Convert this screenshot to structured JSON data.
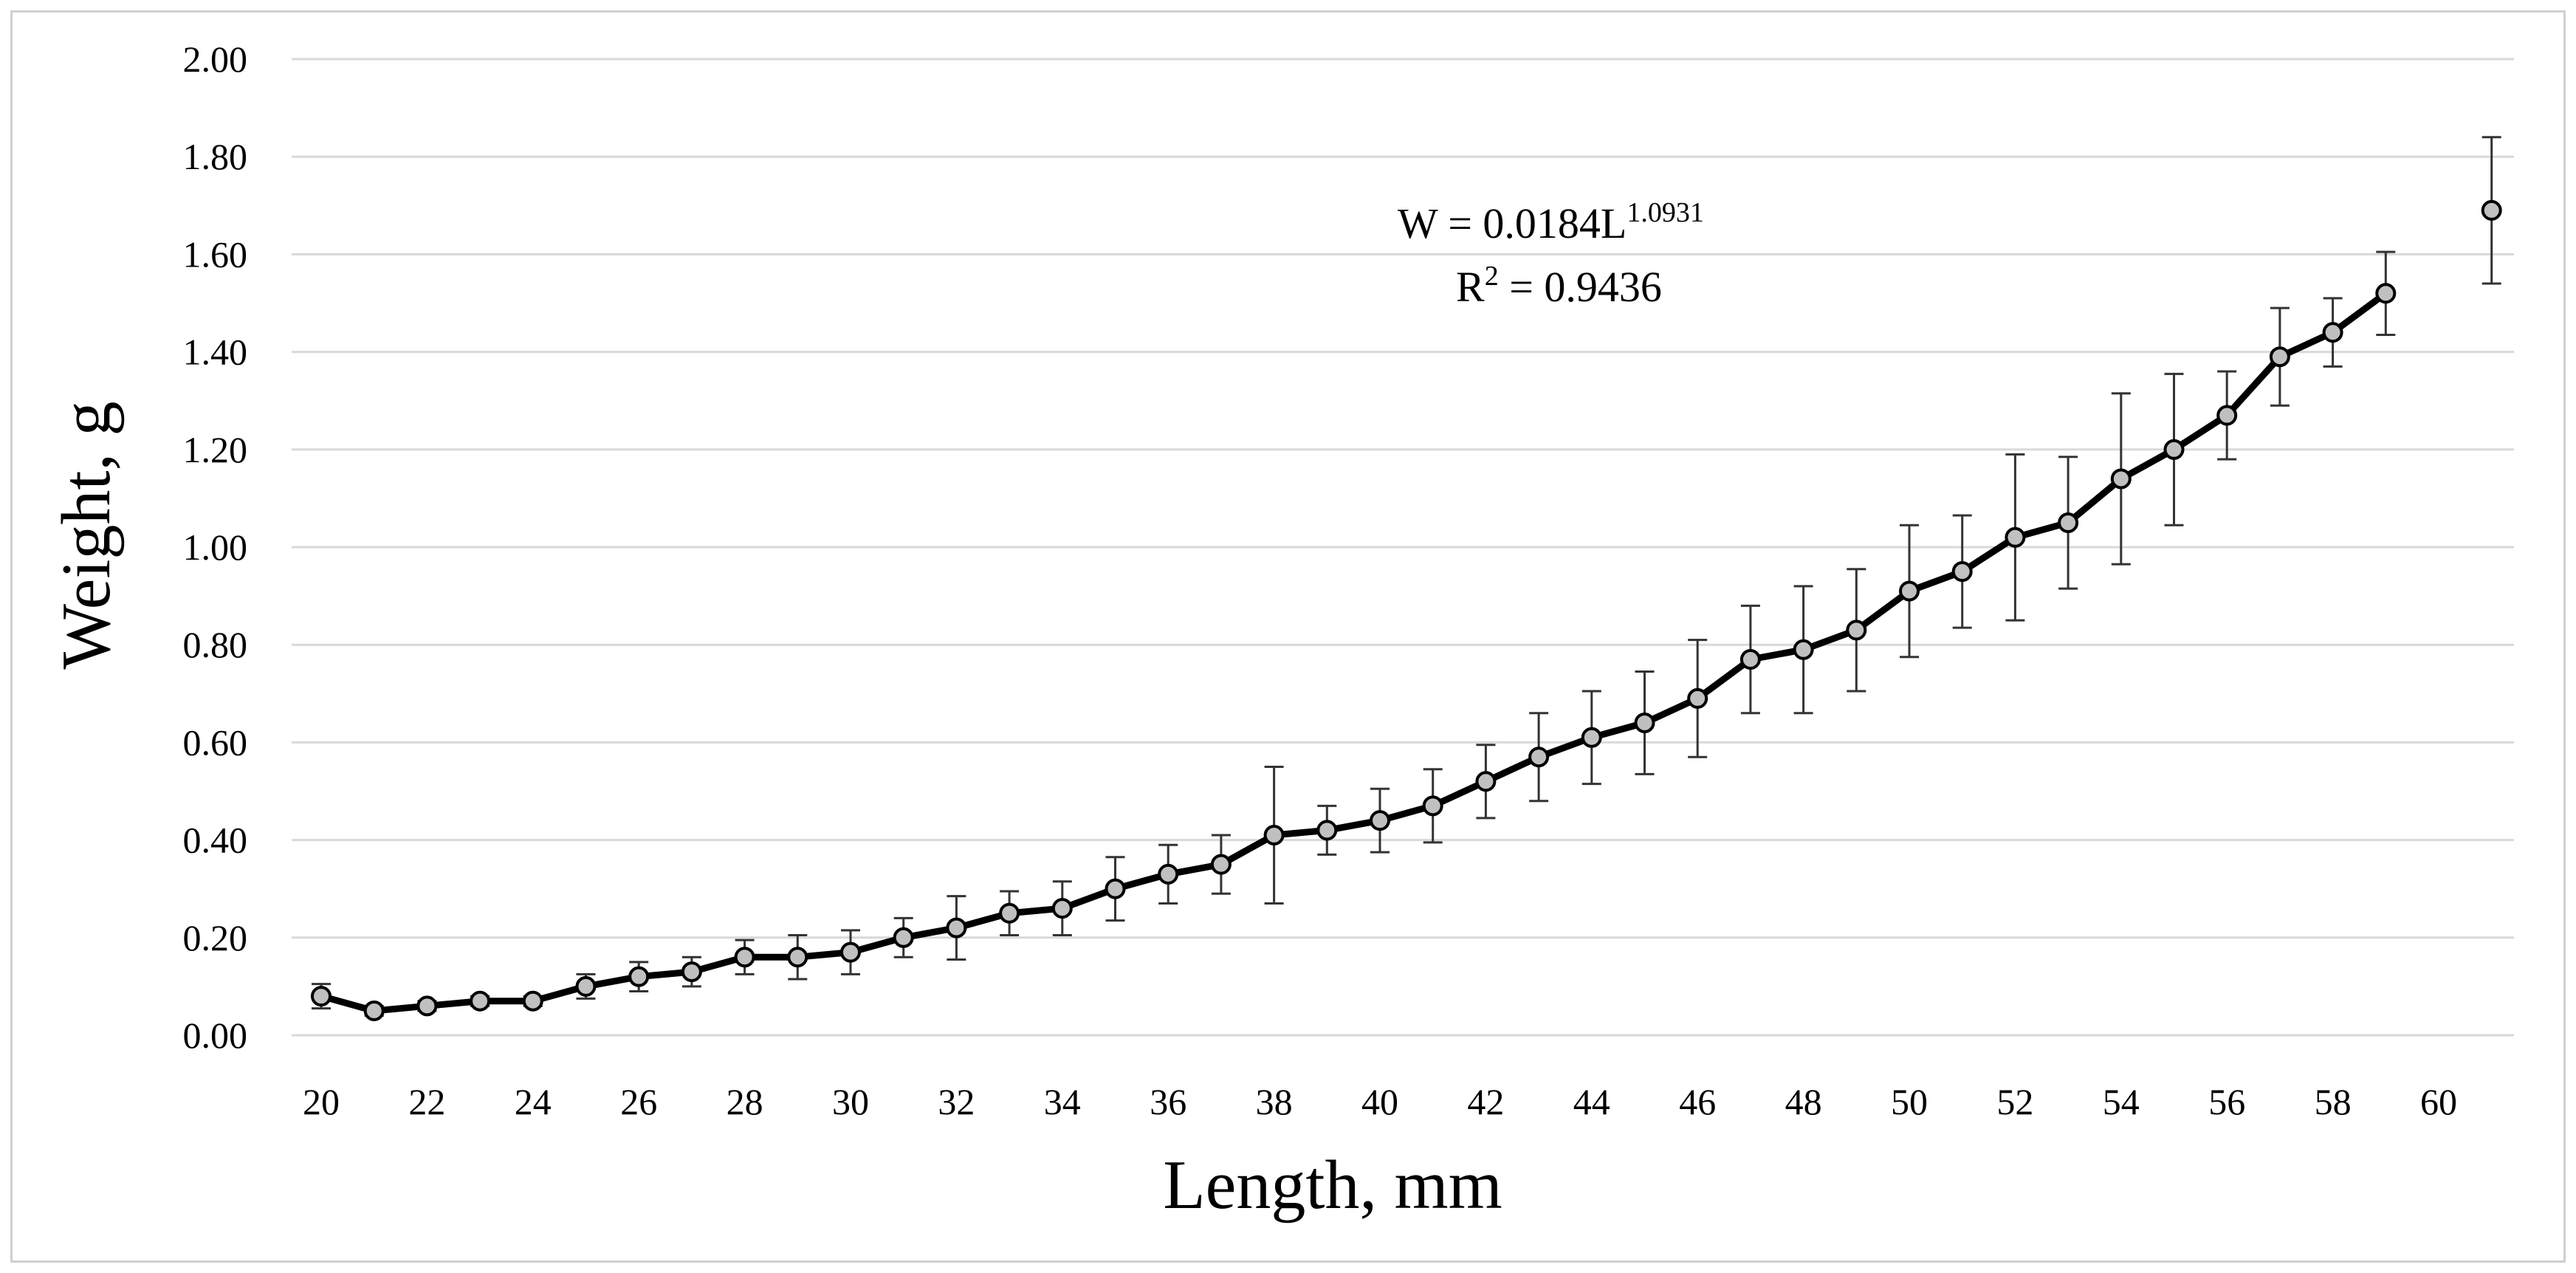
{
  "chart_data": {
    "type": "line",
    "xlabel": "Length, mm",
    "ylabel": "Weight, g",
    "xlim": [
      20,
      61
    ],
    "ylim": [
      0,
      2
    ],
    "x_ticks": [
      "20",
      "22",
      "24",
      "26",
      "28",
      "30",
      "32",
      "34",
      "36",
      "38",
      "40",
      "42",
      "44",
      "46",
      "48",
      "50",
      "52",
      "54",
      "56",
      "58",
      "60"
    ],
    "y_ticks": [
      "0.00",
      "0.20",
      "0.40",
      "0.60",
      "0.80",
      "1.00",
      "1.20",
      "1.40",
      "1.60",
      "1.80",
      "2.00"
    ],
    "grid": "horizontal",
    "series": [
      {
        "connected": true,
        "line_color": "#000000",
        "marker_color": "#c0c0c0",
        "x": [
          20,
          21,
          22,
          23,
          24,
          25,
          26,
          27,
          28,
          29,
          30,
          31,
          32,
          33,
          34,
          35,
          36,
          37,
          38,
          39,
          40,
          41,
          42,
          43,
          44,
          45,
          46,
          47,
          48,
          49,
          50,
          51,
          52,
          53,
          54,
          55,
          56,
          57,
          58,
          59
        ],
        "y": [
          0.08,
          0.05,
          0.06,
          0.07,
          0.07,
          0.1,
          0.12,
          0.13,
          0.16,
          0.16,
          0.17,
          0.2,
          0.22,
          0.25,
          0.26,
          0.3,
          0.33,
          0.35,
          0.41,
          0.42,
          0.44,
          0.47,
          0.52,
          0.57,
          0.61,
          0.64,
          0.69,
          0.77,
          0.79,
          0.83,
          0.91,
          0.95,
          1.02,
          1.05,
          1.14,
          1.2,
          1.27,
          1.39,
          1.44,
          1.52
        ],
        "err": [
          0.025,
          0.01,
          0.01,
          0.01,
          0.01,
          0.025,
          0.03,
          0.03,
          0.035,
          0.045,
          0.045,
          0.04,
          0.065,
          0.045,
          0.055,
          0.065,
          0.06,
          0.06,
          0.14,
          0.05,
          0.065,
          0.075,
          0.075,
          0.09,
          0.095,
          0.105,
          0.12,
          0.11,
          0.13,
          0.125,
          0.135,
          0.115,
          0.17,
          0.135,
          0.175,
          0.155,
          0.09,
          0.1,
          0.07,
          0.085
        ]
      },
      {
        "connected": false,
        "line_color": "#000000",
        "marker_color": "#c0c0c0",
        "x": [
          61
        ],
        "y": [
          1.69
        ],
        "err": [
          0.15
        ]
      }
    ],
    "annotation": {
      "equation_base": "W = 0.0184L",
      "equation_exp": "1.0931",
      "r2_label": "R",
      "r2_sup": "2",
      "r2_value": " = 0.9436"
    }
  }
}
